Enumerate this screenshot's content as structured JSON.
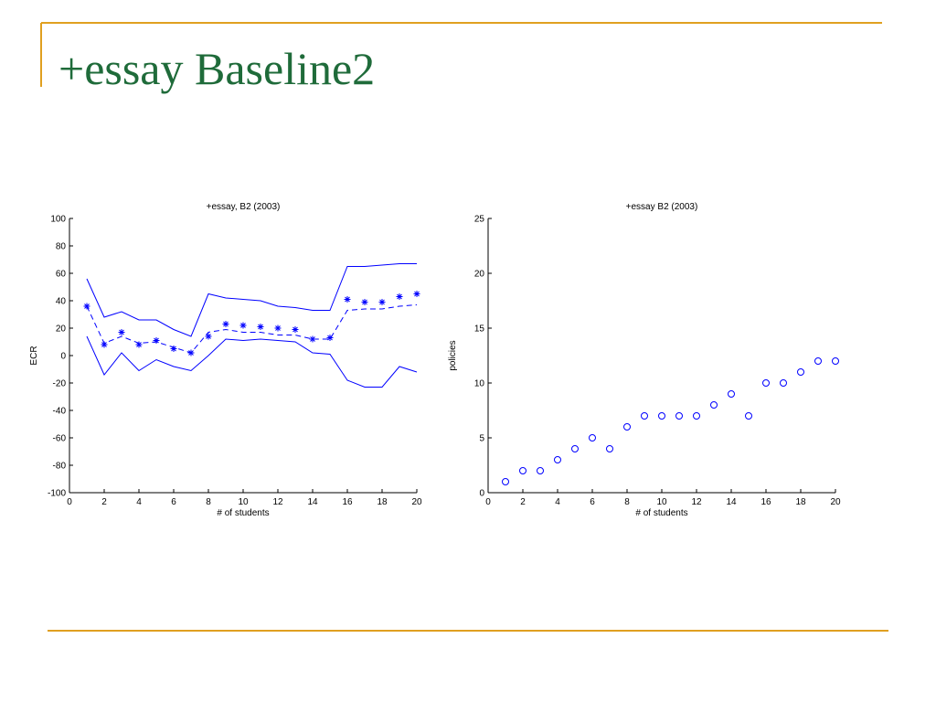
{
  "title": "+essay Baseline2",
  "chart_data": [
    {
      "type": "line",
      "title": "+essay, B2 (2003)",
      "x_label": "# of students",
      "y_label": "ECR",
      "x": [
        1,
        2,
        3,
        4,
        5,
        6,
        7,
        8,
        9,
        10,
        11,
        12,
        13,
        14,
        15,
        16,
        17,
        18,
        19,
        20
      ],
      "xlim": [
        0,
        20
      ],
      "xticks": [
        0,
        2,
        4,
        6,
        8,
        10,
        12,
        14,
        16,
        18,
        20
      ],
      "ylim": [
        -100,
        100
      ],
      "yticks": [
        -100,
        -80,
        -60,
        -40,
        -20,
        0,
        20,
        40,
        60,
        80,
        100
      ],
      "series": [
        {
          "color": "#0000ff",
          "line_style": "solid",
          "values": [
            56,
            28,
            32,
            26,
            26,
            19,
            14,
            45,
            42,
            41,
            40,
            36,
            35,
            33,
            33,
            65,
            65,
            66,
            67,
            67
          ]
        },
        {
          "color": "#0000ff",
          "line_style": "dashed",
          "values": [
            36,
            9,
            14,
            9,
            10,
            6,
            2,
            17,
            19,
            17,
            17,
            15,
            15,
            12,
            12,
            33,
            34,
            34,
            36,
            37
          ]
        },
        {
          "color": "#0000ff",
          "line_style": "none",
          "marker": "asterisk",
          "values": [
            36,
            8,
            17,
            8,
            11,
            5,
            2,
            14,
            23,
            22,
            21,
            20,
            19,
            12,
            13,
            41,
            39,
            39,
            43,
            45
          ]
        },
        {
          "color": "#0000ff",
          "line_style": "solid",
          "values": [
            14,
            -14,
            2,
            -11,
            -3,
            -8,
            -11,
            0,
            12,
            11,
            12,
            11,
            10,
            2,
            1,
            -18,
            -23,
            -23,
            -8,
            -12
          ]
        }
      ]
    },
    {
      "type": "scatter",
      "title": "+essay B2 (2003)",
      "x_label": "# of students",
      "y_label": "policies",
      "x": [
        1,
        2,
        3,
        4,
        5,
        6,
        7,
        8,
        9,
        10,
        11,
        12,
        13,
        14,
        15,
        16,
        17,
        18,
        19,
        20
      ],
      "xlim": [
        0,
        20
      ],
      "xticks": [
        0,
        2,
        4,
        6,
        8,
        10,
        12,
        14,
        16,
        18,
        20
      ],
      "ylim": [
        0,
        25
      ],
      "yticks": [
        0,
        5,
        10,
        15,
        20,
        25
      ],
      "series": [
        {
          "color": "#0000ff",
          "line_style": "none",
          "marker": "circle",
          "values": [
            1,
            2,
            2,
            3,
            4,
            5,
            4,
            6,
            7,
            7,
            7,
            7,
            8,
            9,
            7,
            10,
            10,
            11,
            12,
            12
          ]
        }
      ]
    }
  ]
}
